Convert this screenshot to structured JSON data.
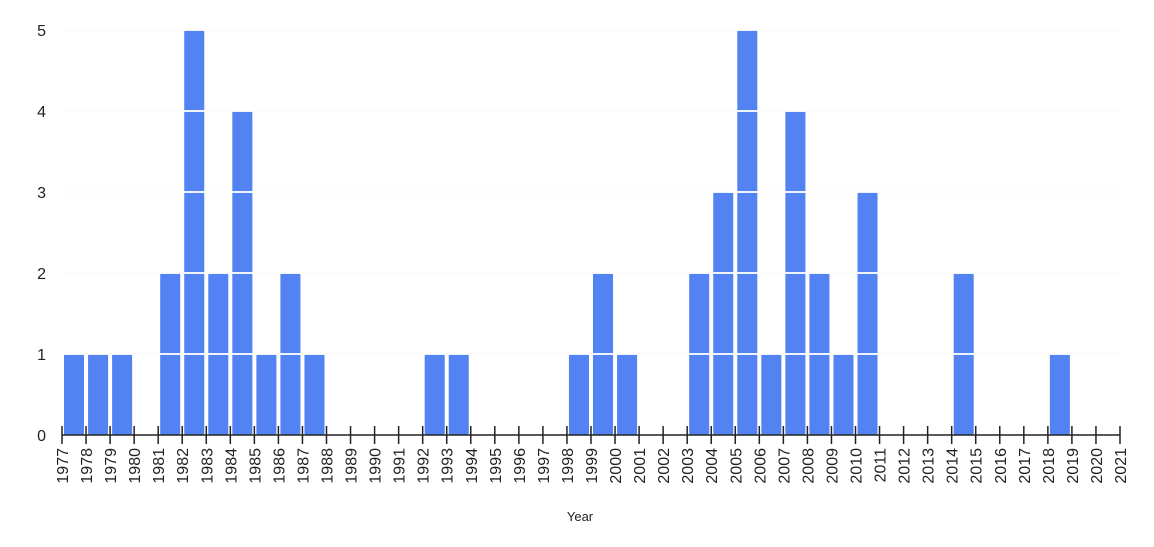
{
  "chart_data": {
    "type": "histogram",
    "x_label": "Year",
    "bins": [
      1977,
      1978,
      1979,
      1980,
      1981,
      1982,
      1983,
      1984,
      1985,
      1986,
      1987,
      1988,
      1989,
      1990,
      1991,
      1992,
      1993,
      1994,
      1995,
      1996,
      1997,
      1998,
      1999,
      2000,
      2001,
      2002,
      2003,
      2004,
      2005,
      2006,
      2007,
      2008,
      2009,
      2010,
      2011,
      2012,
      2013,
      2014,
      2015,
      2016,
      2017,
      2018,
      2019,
      2020,
      2021
    ],
    "values": [
      1,
      1,
      1,
      0,
      2,
      5,
      2,
      4,
      1,
      2,
      1,
      0,
      0,
      0,
      0,
      1,
      1,
      0,
      0,
      0,
      0,
      1,
      2,
      1,
      0,
      0,
      2,
      3,
      5,
      1,
      4,
      2,
      1,
      3,
      0,
      0,
      0,
      2,
      0,
      0,
      0,
      1,
      0,
      0
    ],
    "color": "#5383f3",
    "xlim": [
      1977,
      2021
    ],
    "ylim": [
      0,
      5
    ],
    "yticks": [
      0,
      1,
      2,
      3,
      4,
      5
    ],
    "grid": true
  }
}
